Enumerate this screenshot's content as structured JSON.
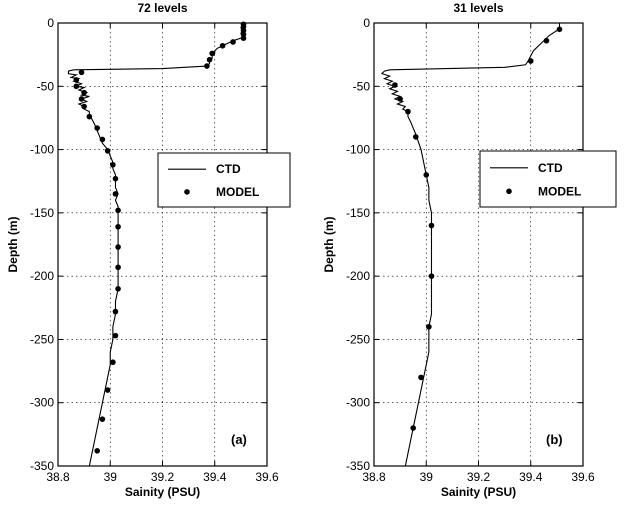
{
  "chart_data": [
    {
      "type": "line",
      "title": "72 levels",
      "xlabel": "Sainity (PSU)",
      "ylabel": "Depth (m)",
      "xlim": [
        38.8,
        39.6
      ],
      "ylim": [
        -350,
        0
      ],
      "xticks": [
        38.8,
        39,
        39.2,
        39.4,
        39.6
      ],
      "xtick_labels": [
        "38.8",
        "39",
        "39.2",
        "39.4",
        "39.6"
      ],
      "yticks": [
        0,
        -50,
        -100,
        -150,
        -200,
        -250,
        -300,
        -350
      ],
      "ytick_labels": [
        "0",
        "-50",
        "-100",
        "-150",
        "-200",
        "-250",
        "-300",
        "-350"
      ],
      "grid": true,
      "legend": {
        "placement": "middle-right",
        "entries": [
          "CTD",
          "MODEL"
        ]
      },
      "annotation": "(a)",
      "series": [
        {
          "name": "CTD",
          "style": "line",
          "points": [
            [
              39.51,
              0
            ],
            [
              39.51,
              -2
            ],
            [
              39.5,
              -4
            ],
            [
              39.51,
              -6
            ],
            [
              39.5,
              -8
            ],
            [
              39.51,
              -10
            ],
            [
              39.5,
              -12
            ],
            [
              39.47,
              -14
            ],
            [
              39.45,
              -16
            ],
            [
              39.43,
              -18
            ],
            [
              39.41,
              -20
            ],
            [
              39.4,
              -22
            ],
            [
              39.4,
              -24
            ],
            [
              39.39,
              -26
            ],
            [
              39.39,
              -28
            ],
            [
              39.38,
              -30
            ],
            [
              39.38,
              -32
            ],
            [
              39.37,
              -34
            ],
            [
              39.2,
              -36
            ],
            [
              38.86,
              -37
            ],
            [
              38.84,
              -38
            ],
            [
              38.84,
              -40
            ],
            [
              38.87,
              -41
            ],
            [
              38.85,
              -43
            ],
            [
              38.88,
              -44
            ],
            [
              38.86,
              -46
            ],
            [
              38.89,
              -48
            ],
            [
              38.87,
              -50
            ],
            [
              38.9,
              -51
            ],
            [
              38.88,
              -53
            ],
            [
              38.91,
              -55
            ],
            [
              38.89,
              -57
            ],
            [
              38.92,
              -58
            ],
            [
              38.89,
              -60
            ],
            [
              38.91,
              -62
            ],
            [
              38.88,
              -64
            ],
            [
              38.9,
              -66
            ],
            [
              38.9,
              -68
            ],
            [
              38.92,
              -70
            ],
            [
              38.92,
              -73
            ],
            [
              38.93,
              -76
            ],
            [
              38.94,
              -80
            ],
            [
              38.95,
              -85
            ],
            [
              38.96,
              -90
            ],
            [
              38.97,
              -95
            ],
            [
              38.99,
              -100
            ],
            [
              39,
              -105
            ],
            [
              39.01,
              -110
            ],
            [
              39.01,
              -115
            ],
            [
              39.02,
              -120
            ],
            [
              39.02,
              -125
            ],
            [
              39.02,
              -130
            ],
            [
              39.03,
              -135
            ],
            [
              39.02,
              -140
            ],
            [
              39.03,
              -145
            ],
            [
              39.03,
              -150
            ],
            [
              39.03,
              -160
            ],
            [
              39.03,
              -170
            ],
            [
              39.03,
              -180
            ],
            [
              39.03,
              -190
            ],
            [
              39.03,
              -200
            ],
            [
              39.03,
              -210
            ],
            [
              39.02,
              -220
            ],
            [
              39.02,
              -230
            ],
            [
              39.01,
              -240
            ],
            [
              39.01,
              -250
            ],
            [
              39,
              -260
            ],
            [
              39,
              -270
            ],
            [
              38.99,
              -280
            ],
            [
              38.98,
              -290
            ],
            [
              38.97,
              -300
            ],
            [
              38.96,
              -310
            ],
            [
              38.95,
              -320
            ],
            [
              38.94,
              -330
            ],
            [
              38.93,
              -340
            ],
            [
              38.92,
              -350
            ]
          ]
        },
        {
          "name": "MODEL",
          "style": "markers",
          "points": [
            [
              39.51,
              -1
            ],
            [
              39.51,
              -3
            ],
            [
              39.51,
              -6
            ],
            [
              39.51,
              -9
            ],
            [
              39.51,
              -12
            ],
            [
              39.47,
              -15
            ],
            [
              39.43,
              -18
            ],
            [
              39.39,
              -24
            ],
            [
              39.38,
              -29
            ],
            [
              39.37,
              -34
            ],
            [
              38.89,
              -39
            ],
            [
              38.87,
              -45
            ],
            [
              38.87,
              -50
            ],
            [
              38.9,
              -55
            ],
            [
              38.89,
              -60
            ],
            [
              38.9,
              -66
            ],
            [
              38.92,
              -74
            ],
            [
              38.95,
              -83
            ],
            [
              38.97,
              -92
            ],
            [
              38.99,
              -101
            ],
            [
              39.01,
              -112
            ],
            [
              39.02,
              -123
            ],
            [
              39.02,
              -135
            ],
            [
              39.03,
              -148
            ],
            [
              39.03,
              -161
            ],
            [
              39.03,
              -177
            ],
            [
              39.03,
              -193
            ],
            [
              39.03,
              -210
            ],
            [
              39.02,
              -228
            ],
            [
              39.02,
              -247
            ],
            [
              39.01,
              -268
            ],
            [
              38.99,
              -290
            ],
            [
              38.97,
              -313
            ],
            [
              38.95,
              -338
            ]
          ]
        }
      ]
    },
    {
      "type": "line",
      "title": "31 levels",
      "xlabel": "Sainity (PSU)",
      "ylabel": "Depth (m)",
      "xlim": [
        38.8,
        39.6
      ],
      "ylim": [
        -350,
        0
      ],
      "xticks": [
        38.8,
        39,
        39.2,
        39.4,
        39.6
      ],
      "xtick_labels": [
        "38.8",
        "39",
        "39.2",
        "39.4",
        "39.6"
      ],
      "yticks": [
        0,
        -50,
        -100,
        -150,
        -200,
        -250,
        -300,
        -350
      ],
      "ytick_labels": [
        "0",
        "-50",
        "-100",
        "-150",
        "-200",
        "-250",
        "-300",
        "-350"
      ],
      "grid": true,
      "legend": {
        "placement": "middle-right",
        "entries": [
          "CTD",
          "MODEL"
        ]
      },
      "annotation": "(b)",
      "series": [
        {
          "name": "CTD",
          "style": "line",
          "points": [
            [
              39.51,
              0
            ],
            [
              39.51,
              -3
            ],
            [
              39.5,
              -6
            ],
            [
              39.47,
              -10
            ],
            [
              39.45,
              -14
            ],
            [
              39.43,
              -18
            ],
            [
              39.41,
              -22
            ],
            [
              39.4,
              -26
            ],
            [
              39.39,
              -30
            ],
            [
              39.38,
              -33
            ],
            [
              39.3,
              -35
            ],
            [
              38.86,
              -37
            ],
            [
              38.84,
              -38
            ],
            [
              38.83,
              -40
            ],
            [
              38.86,
              -42
            ],
            [
              38.84,
              -44
            ],
            [
              38.87,
              -46
            ],
            [
              38.85,
              -48
            ],
            [
              38.88,
              -50
            ],
            [
              38.86,
              -52
            ],
            [
              38.89,
              -54
            ],
            [
              38.87,
              -56
            ],
            [
              38.9,
              -58
            ],
            [
              38.88,
              -60
            ],
            [
              38.91,
              -62
            ],
            [
              38.89,
              -64
            ],
            [
              38.92,
              -66
            ],
            [
              38.91,
              -68
            ],
            [
              38.93,
              -70
            ],
            [
              38.93,
              -74
            ],
            [
              38.94,
              -78
            ],
            [
              38.95,
              -83
            ],
            [
              38.96,
              -88
            ],
            [
              38.97,
              -94
            ],
            [
              38.98,
              -100
            ],
            [
              38.99,
              -110
            ],
            [
              39,
              -120
            ],
            [
              39.01,
              -130
            ],
            [
              39.01,
              -140
            ],
            [
              39.02,
              -150
            ],
            [
              39.02,
              -160
            ],
            [
              39.02,
              -170
            ],
            [
              39.02,
              -180
            ],
            [
              39.02,
              -190
            ],
            [
              39.02,
              -200
            ],
            [
              39.02,
              -210
            ],
            [
              39.02,
              -220
            ],
            [
              39.02,
              -230
            ],
            [
              39.01,
              -240
            ],
            [
              39.01,
              -250
            ],
            [
              39.01,
              -260
            ],
            [
              39,
              -270
            ],
            [
              38.99,
              -280
            ],
            [
              38.98,
              -290
            ],
            [
              38.97,
              -300
            ],
            [
              38.96,
              -310
            ],
            [
              38.95,
              -320
            ],
            [
              38.94,
              -330
            ],
            [
              38.93,
              -340
            ],
            [
              38.92,
              -350
            ]
          ]
        },
        {
          "name": "MODEL",
          "style": "markers",
          "points": [
            [
              39.51,
              -5
            ],
            [
              39.46,
              -14
            ],
            [
              39.4,
              -30
            ],
            [
              38.88,
              -49
            ],
            [
              38.9,
              -60
            ],
            [
              38.93,
              -70
            ],
            [
              38.96,
              -90
            ],
            [
              39,
              -120
            ],
            [
              39.02,
              -160
            ],
            [
              39.02,
              -200
            ],
            [
              39.01,
              -240
            ],
            [
              38.98,
              -280
            ],
            [
              38.95,
              -320
            ]
          ]
        }
      ]
    }
  ]
}
